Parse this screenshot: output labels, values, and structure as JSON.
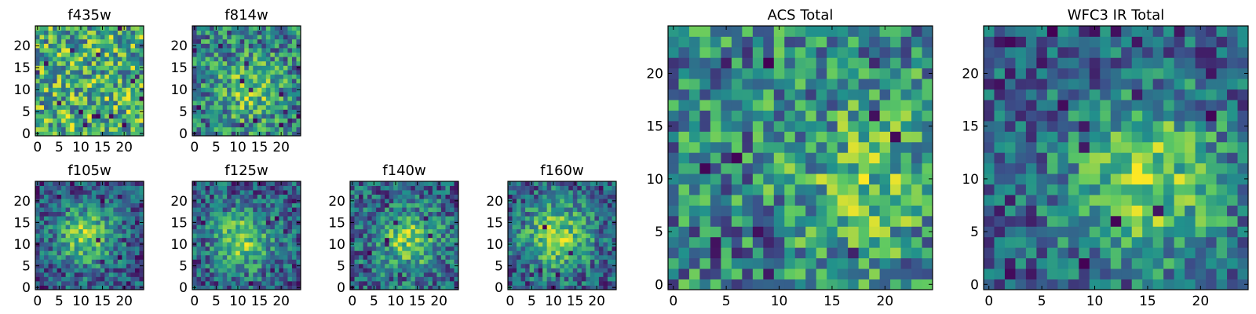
{
  "figure": {
    "colormap": "viridis",
    "colormap_stops": [
      "#440154",
      "#3b528b",
      "#21918c",
      "#5ec962",
      "#fde725"
    ],
    "panels": [
      {
        "id": "f435w",
        "title": "f435w",
        "chart_data": {
          "type": "heatmap",
          "title": "f435w",
          "grid_size": [
            25,
            25
          ],
          "xlim": [
            -0.5,
            24.5
          ],
          "ylim": [
            -0.5,
            24.5
          ],
          "xticks": [
            0,
            5,
            10,
            15,
            20
          ],
          "yticks": [
            0,
            5,
            10,
            15,
            20
          ],
          "grid": false,
          "pattern": {
            "kind": "noise",
            "center": [
              12,
              12
            ],
            "sigma": 8,
            "strength": 0.0,
            "dark_pixels": 16,
            "seed": 11
          },
          "values": []
        }
      },
      {
        "id": "f814w",
        "title": "f814w",
        "chart_data": {
          "type": "heatmap",
          "title": "f814w",
          "grid_size": [
            25,
            25
          ],
          "xlim": [
            -0.5,
            24.5
          ],
          "ylim": [
            -0.5,
            24.5
          ],
          "xticks": [
            0,
            5,
            10,
            15,
            20
          ],
          "yticks": [
            0,
            5,
            10,
            15,
            20
          ],
          "grid": false,
          "pattern": {
            "kind": "faint-source",
            "center": [
              13,
              10
            ],
            "sigma": 5,
            "strength": 0.25,
            "dark_pixels": 16,
            "seed": 23
          },
          "values": []
        }
      },
      {
        "id": "f105w",
        "title": "f105w",
        "chart_data": {
          "type": "heatmap",
          "title": "f105w",
          "grid_size": [
            25,
            25
          ],
          "xlim": [
            -0.5,
            24.5
          ],
          "ylim": [
            -0.5,
            24.5
          ],
          "xticks": [
            0,
            5,
            10,
            15,
            20
          ],
          "yticks": [
            0,
            5,
            10,
            15,
            20
          ],
          "grid": false,
          "pattern": {
            "kind": "source",
            "center": [
              11,
              12
            ],
            "sigma": 5,
            "strength": 0.55,
            "dark_pixels": 10,
            "seed": 37
          },
          "values": []
        }
      },
      {
        "id": "f125w",
        "title": "f125w",
        "chart_data": {
          "type": "heatmap",
          "title": "f125w",
          "grid_size": [
            25,
            25
          ],
          "xlim": [
            -0.5,
            24.5
          ],
          "ylim": [
            -0.5,
            24.5
          ],
          "xticks": [
            0,
            5,
            10,
            15,
            20
          ],
          "yticks": [
            0,
            5,
            10,
            15,
            20
          ],
          "grid": false,
          "pattern": {
            "kind": "source",
            "center": [
              11,
              11
            ],
            "sigma": 5,
            "strength": 0.5,
            "dark_pixels": 12,
            "seed": 41
          },
          "values": []
        }
      },
      {
        "id": "f140w",
        "title": "f140w",
        "chart_data": {
          "type": "heatmap",
          "title": "f140w",
          "grid_size": [
            25,
            25
          ],
          "xlim": [
            -0.5,
            24.5
          ],
          "ylim": [
            -0.5,
            24.5
          ],
          "xticks": [
            0,
            5,
            10,
            15,
            20
          ],
          "yticks": [
            0,
            5,
            10,
            15,
            20
          ],
          "grid": false,
          "pattern": {
            "kind": "source",
            "center": [
              13,
              11
            ],
            "sigma": 5,
            "strength": 0.45,
            "dark_pixels": 14,
            "seed": 53
          },
          "values": []
        }
      },
      {
        "id": "f160w",
        "title": "f160w",
        "chart_data": {
          "type": "heatmap",
          "title": "f160w",
          "grid_size": [
            25,
            25
          ],
          "xlim": [
            -0.5,
            24.5
          ],
          "ylim": [
            -0.5,
            24.5
          ],
          "xticks": [
            0,
            5,
            10,
            15,
            20
          ],
          "yticks": [
            0,
            5,
            10,
            15,
            20
          ],
          "grid": false,
          "pattern": {
            "kind": "source",
            "center": [
              11,
              12
            ],
            "sigma": 6,
            "strength": 0.55,
            "dark_pixels": 6,
            "seed": 67
          },
          "values": []
        }
      },
      {
        "id": "acs-total",
        "title": "ACS Total",
        "chart_data": {
          "type": "heatmap",
          "title": "ACS Total",
          "grid_size": [
            25,
            25
          ],
          "xlim": [
            -0.5,
            24.5
          ],
          "ylim": [
            -0.5,
            24.5
          ],
          "xticks": [
            0,
            5,
            10,
            15,
            20
          ],
          "yticks": [
            0,
            5,
            10,
            15,
            20
          ],
          "grid": false,
          "pattern": {
            "kind": "faint-source",
            "center": [
              18,
              10
            ],
            "sigma": 5,
            "strength": 0.2,
            "dark_pixels": 14,
            "seed": 79
          },
          "values": []
        }
      },
      {
        "id": "wfc3-ir-total",
        "title": "WFC3 IR Total",
        "chart_data": {
          "type": "heatmap",
          "title": "WFC3 IR Total",
          "grid_size": [
            25,
            25
          ],
          "xlim": [
            -0.5,
            24.5
          ],
          "ylim": [
            -0.5,
            24.5
          ],
          "xticks": [
            0,
            5,
            10,
            15,
            20
          ],
          "yticks": [
            0,
            5,
            10,
            15,
            20
          ],
          "grid": false,
          "pattern": {
            "kind": "source",
            "center": [
              15,
              10
            ],
            "sigma": 6,
            "strength": 0.55,
            "dark_pixels": 10,
            "seed": 97
          },
          "values": []
        }
      }
    ]
  }
}
